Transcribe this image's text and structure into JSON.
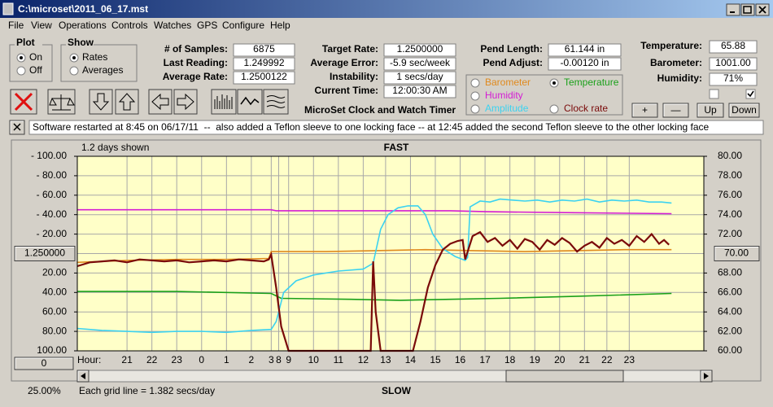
{
  "window": {
    "title": "C:\\microset\\2011_06_17.mst",
    "menu": [
      "File",
      "View",
      "Operations",
      "Controls",
      "Watches",
      "GPS",
      "Configure",
      "Help"
    ]
  },
  "plot_group": {
    "title": "Plot",
    "options": [
      "On",
      "Off"
    ],
    "selected": 0
  },
  "show_group": {
    "title": "Show",
    "options": [
      "Rates",
      "Averages"
    ],
    "selected": 0
  },
  "readings": [
    {
      "label": "# of Samples:",
      "value": "6875"
    },
    {
      "label": "Last Reading:",
      "value": "1.249992"
    },
    {
      "label": "Average Rate:",
      "value": "1.2500122"
    }
  ],
  "timing": [
    {
      "label": "Target Rate:",
      "value": "1.2500000"
    },
    {
      "label": "Average Error:",
      "value": "-5.9 sec/week"
    },
    {
      "label": "Instability:",
      "value": "1 secs/day"
    },
    {
      "label": "Current Time:",
      "value": "12:00:30 AM"
    }
  ],
  "pendulum": [
    {
      "label": "Pend Length:",
      "value": "61.144 in"
    },
    {
      "label": "Pend Adjust:",
      "value": "-0.00120 in"
    }
  ],
  "environment": {
    "fields": [
      {
        "label": "Temperature:",
        "value": "65.88"
      },
      {
        "label": "Barometer:",
        "value": "1001.00"
      },
      {
        "label": "Humidity:",
        "value": "71%"
      }
    ],
    "checks": [
      false,
      true
    ]
  },
  "app_title": "MicroSet Clock and Watch Timer",
  "adjust_buttons": [
    "+",
    "—",
    "Up",
    "Down"
  ],
  "note": "Software restarted at 8:45 on 06/17/11  --  also added a Teflon sleeve to one locking face -- at 12:45 added the second Teflon sleeve to the other locking face",
  "chart_data": {
    "type": "line",
    "title": "FAST",
    "bottom_label": "SLOW",
    "span_label": "1.2 days shown",
    "x_label": "Hour:",
    "zoom_button": "0",
    "scale_label": "25.00%",
    "grid_note": "Each grid line = 1.382 secs/day",
    "grid": true,
    "plot_background": "#ffffc8",
    "selected_series": 1,
    "xlim": [
      0,
      25.2
    ],
    "xticks": [
      {
        "value": 2,
        "label": "21"
      },
      {
        "value": 3,
        "label": "22"
      },
      {
        "value": 4,
        "label": "23"
      },
      {
        "value": 5,
        "label": "0"
      },
      {
        "value": 6,
        "label": "1"
      },
      {
        "value": 7,
        "label": "2"
      },
      {
        "value": 7.8,
        "label": "3"
      },
      {
        "value": 8.1,
        "label": "8"
      },
      {
        "value": 8.5,
        "label": "9"
      },
      {
        "value": 9.5,
        "label": "10"
      },
      {
        "value": 10.5,
        "label": "11"
      },
      {
        "value": 11.5,
        "label": "12"
      },
      {
        "value": 12.4,
        "label": "13"
      },
      {
        "value": 13.4,
        "label": "14"
      },
      {
        "value": 14.4,
        "label": "15"
      },
      {
        "value": 15.4,
        "label": "16"
      },
      {
        "value": 16.4,
        "label": "17"
      },
      {
        "value": 17.4,
        "label": "18"
      },
      {
        "value": 18.4,
        "label": "19"
      },
      {
        "value": 19.4,
        "label": "20"
      },
      {
        "value": 20.4,
        "label": "21"
      },
      {
        "value": 21.3,
        "label": "22"
      },
      {
        "value": 22.2,
        "label": "23"
      }
    ],
    "ylim": [
      -100,
      100
    ],
    "yticks": [
      {
        "value": 100,
        "label": "- 100.00"
      },
      {
        "value": 80,
        "label": "- 80.00"
      },
      {
        "value": 60,
        "label": "- 60.00"
      },
      {
        "value": 40,
        "label": "- 40.00"
      },
      {
        "value": 20,
        "label": "- 20.00"
      },
      {
        "value": 0,
        "label": "1.250000"
      },
      {
        "value": -20,
        "label": "20.00"
      },
      {
        "value": -40,
        "label": "40.00"
      },
      {
        "value": -60,
        "label": "60.00"
      },
      {
        "value": -80,
        "label": "80.00"
      },
      {
        "value": -100,
        "label": "100.00"
      }
    ],
    "y2lim": [
      60,
      80
    ],
    "y2ticks": [
      {
        "value": 80,
        "label": "80.00"
      },
      {
        "value": 78,
        "label": "78.00"
      },
      {
        "value": 76,
        "label": "76.00"
      },
      {
        "value": 74,
        "label": "74.00"
      },
      {
        "value": 72,
        "label": "72.00"
      },
      {
        "value": 70,
        "label": "70.00"
      },
      {
        "value": 68,
        "label": "68.00"
      },
      {
        "value": 66,
        "label": "66.00"
      },
      {
        "value": 64,
        "label": "64.00"
      },
      {
        "value": 62,
        "label": "62.00"
      },
      {
        "value": 60,
        "label": "60.00"
      }
    ],
    "series": [
      {
        "name": "Barometer",
        "color": "#e08a1e",
        "x": [
          0,
          2,
          4,
          6,
          7.7,
          7.8,
          10,
          12,
          14,
          16,
          18,
          20,
          22,
          23.9
        ],
        "values": [
          -9,
          -7,
          -6,
          -6,
          -5,
          2,
          2,
          3,
          4,
          3,
          2,
          3,
          4,
          4
        ]
      },
      {
        "name": "Temperature",
        "color": "#1aa01a",
        "axis": "y2",
        "x": [
          0,
          4,
          7.8,
          8.2,
          11,
          13,
          15,
          17,
          20,
          23.9
        ],
        "values": [
          66.1,
          66.1,
          65.9,
          65.4,
          65.3,
          65.2,
          65.3,
          65.4,
          65.6,
          65.9
        ]
      },
      {
        "name": "Humidity",
        "color": "#d41cd4",
        "x": [
          0,
          4,
          7.8,
          8.0,
          12,
          15,
          16.5,
          20,
          23.9
        ],
        "values": [
          45,
          45,
          45,
          44,
          44,
          44,
          43,
          42,
          41
        ]
      },
      {
        "name": "Amplitude",
        "color": "#3cd2f0",
        "x": [
          0,
          1,
          2,
          3,
          4,
          5,
          6,
          7,
          7.8,
          8.0,
          8.3,
          8.8,
          9.5,
          10.5,
          11.5,
          11.9,
          12.2,
          12.5,
          12.9,
          13.3,
          13.7,
          14.0,
          14.3,
          14.7,
          15.2,
          15.6,
          15.7,
          15.8,
          16.2,
          16.6,
          17.0,
          17.5,
          18,
          18.5,
          19,
          19.5,
          20,
          20.5,
          21,
          21.5,
          22,
          22.5,
          23,
          23.5,
          23.9
        ],
        "values": [
          -77,
          -79,
          -80,
          -81,
          -80,
          -80,
          -81,
          -79,
          -78,
          -70,
          -40,
          -28,
          -22,
          -18,
          -16,
          -10,
          25,
          40,
          47,
          49,
          49,
          40,
          20,
          5,
          -3,
          -7,
          -4,
          48,
          54,
          53,
          56,
          55,
          54,
          55,
          53,
          55,
          54,
          56,
          53,
          55,
          54,
          55,
          53,
          53,
          52
        ]
      },
      {
        "name": "Clock rate",
        "color": "#7a0a0a",
        "x": [
          0,
          0.5,
          1,
          1.5,
          2,
          2.5,
          3,
          3.5,
          4,
          4.5,
          5,
          5.5,
          6,
          6.5,
          7,
          7.5,
          7.7,
          7.8,
          8.0,
          8.2,
          8.5,
          11.8,
          11.9,
          12.0,
          12.2,
          13.5,
          13.8,
          14.1,
          14.4,
          14.7,
          15.0,
          15.3,
          15.5,
          15.6,
          15.9,
          16.2,
          16.5,
          16.8,
          17.1,
          17.4,
          17.7,
          18.0,
          18.3,
          18.6,
          18.9,
          19.2,
          19.5,
          19.8,
          20.1,
          20.4,
          20.7,
          21.0,
          21.3,
          21.6,
          21.9,
          22.2,
          22.5,
          22.8,
          23.1,
          23.4,
          23.6,
          23.8
        ],
        "values": [
          -13,
          -9,
          -8,
          -7,
          -9,
          -6,
          -7,
          -8,
          -7,
          -9,
          -8,
          -7,
          -8,
          -6,
          -7,
          -8,
          -6,
          -1,
          -35,
          -75,
          -100,
          -100,
          -8,
          -60,
          -100,
          -100,
          -70,
          -35,
          -12,
          4,
          10,
          13,
          14,
          -6,
          18,
          22,
          12,
          16,
          8,
          14,
          5,
          15,
          12,
          4,
          14,
          9,
          16,
          11,
          2,
          8,
          12,
          6,
          16,
          10,
          14,
          8,
          18,
          12,
          20,
          10,
          14,
          9
        ]
      }
    ]
  }
}
